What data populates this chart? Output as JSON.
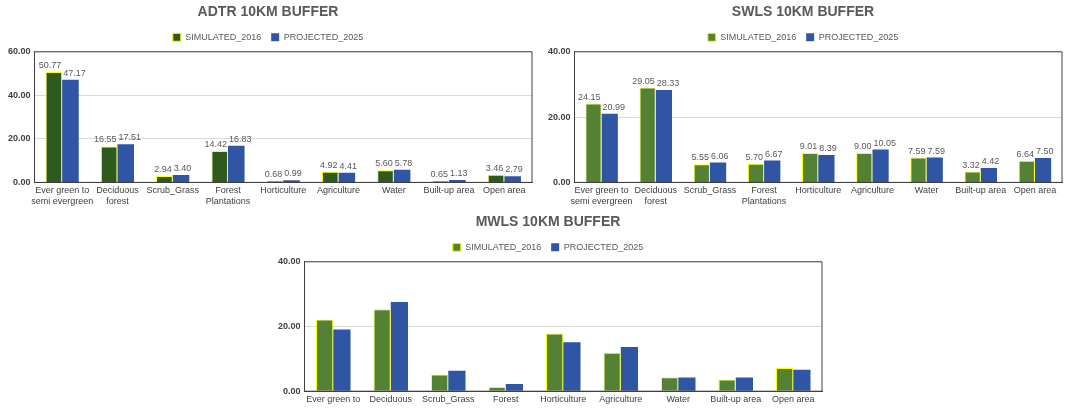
{
  "chart_data": [
    {
      "type": "bar",
      "title": "ADTR 10KM BUFFER",
      "categories": [
        "Ever green to semi evergreen",
        "Deciduous forest",
        "Scrub_Grass",
        "Forest Plantations",
        "Horticulture",
        "Agriculture",
        "Water",
        "Built-up area",
        "Open area"
      ],
      "series": [
        {
          "name": "SIMULATED_2016",
          "color": "#2f5a1f",
          "values": [
            50.77,
            16.55,
            2.94,
            14.42,
            0.68,
            4.92,
            5.6,
            0.65,
            3.46
          ],
          "value_labels": [
            "50.77",
            "16.55",
            "2.94",
            "14.42",
            "0.68",
            "4.92",
            "5.60",
            "0.65",
            "3.46"
          ]
        },
        {
          "name": "PROJECTED_2025",
          "color": "#2f55a4",
          "values": [
            47.17,
            17.51,
            3.4,
            16.83,
            0.99,
            4.41,
            5.78,
            1.13,
            2.79
          ],
          "value_labels": [
            "47.17",
            "17.51",
            "3.40",
            "16.83",
            "0.99",
            "4.41",
            "5.78",
            "1.13",
            "2.79"
          ]
        }
      ],
      "ylim": [
        0,
        60
      ],
      "yticks": [
        {
          "value": 0,
          "label": "0.00"
        },
        {
          "value": 20,
          "label": "20.00"
        },
        {
          "value": 40,
          "label": "40.00"
        },
        {
          "value": 60,
          "label": "60.00"
        }
      ],
      "grid": "y",
      "legend": "top"
    },
    {
      "type": "bar",
      "title": "SWLS 10KM BUFFER",
      "categories": [
        "Ever green to semi evergreen",
        "Deciduous forest",
        "Scrub_Grass",
        "Forest Plantations",
        "Horticulture",
        "Agriculture",
        "Water",
        "Built-up area",
        "Open area"
      ],
      "series": [
        {
          "name": "SIMULATED_2016",
          "color": "#548235",
          "values": [
            24.15,
            29.05,
            5.55,
            5.7,
            9.01,
            9.0,
            7.59,
            3.32,
            6.64
          ],
          "value_labels": [
            "24.15",
            "29.05",
            "5.55",
            "5.70",
            "9.01",
            "9.00",
            "7.59",
            "3.32",
            "6.64"
          ]
        },
        {
          "name": "PROJECTED_2025",
          "color": "#2f55a4",
          "values": [
            20.99,
            28.33,
            6.06,
            6.67,
            8.39,
            10.05,
            7.59,
            4.42,
            7.5
          ],
          "value_labels": [
            "20.99",
            "28.33",
            "6.06",
            "6.67",
            "8.39",
            "10.05",
            "7.59",
            "4.42",
            "7.50"
          ]
        }
      ],
      "ylim": [
        0,
        40
      ],
      "yticks": [
        {
          "value": 0,
          "label": "0.00"
        },
        {
          "value": 20,
          "label": "20.00"
        },
        {
          "value": 40,
          "label": "40.00"
        }
      ],
      "grid": "y",
      "legend": "top"
    },
    {
      "type": "bar",
      "title": "MWLS 10KM BUFFER",
      "categories": [
        "Ever green to",
        "Deciduous",
        "Scrub_Grass",
        "Forest",
        "Horticulture",
        "Agriculture",
        "Water",
        "Built-up area",
        "Open area"
      ],
      "series": [
        {
          "name": "SIMULATED_2016",
          "color": "#548235",
          "values": [
            22.2,
            25.3,
            5.2,
            1.3,
            17.8,
            11.9,
            4.3,
            3.6,
            7.2
          ]
        },
        {
          "name": "PROJECTED_2025",
          "color": "#2f55a4",
          "values": [
            19.1,
            27.6,
            6.3,
            2.2,
            15.1,
            13.7,
            4.2,
            4.2,
            6.6
          ]
        }
      ],
      "ylim": [
        0,
        40
      ],
      "yticks": [
        {
          "value": 0,
          "label": "0.00"
        },
        {
          "value": 20,
          "label": "20.00"
        },
        {
          "value": 40,
          "label": "40.00"
        }
      ],
      "grid": "y",
      "legend": "top"
    }
  ]
}
